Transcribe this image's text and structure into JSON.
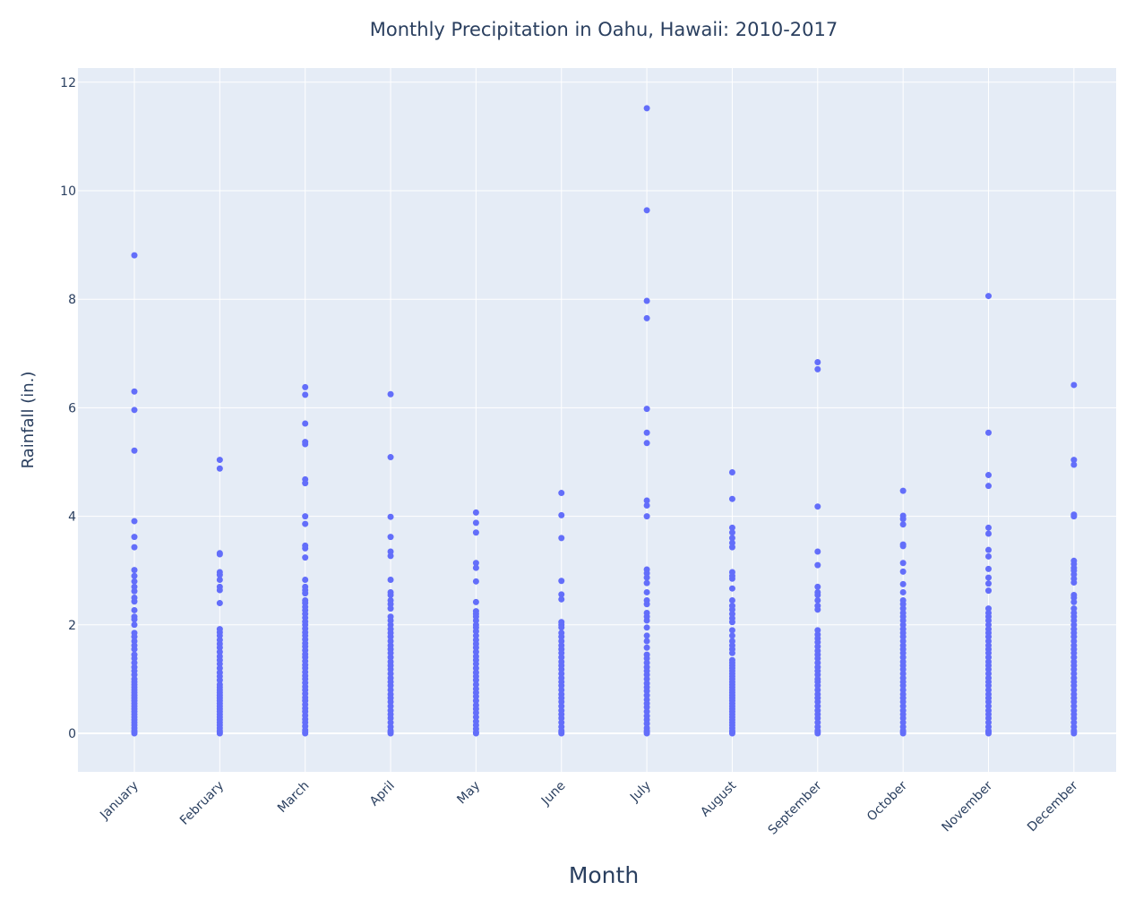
{
  "chart_data": {
    "type": "scatter",
    "title": "Monthly Precipitation in Oahu, Hawaii: 2010-2017",
    "xlabel": "Month",
    "ylabel": "Rainfall (in.)",
    "categories": [
      "January",
      "February",
      "March",
      "April",
      "May",
      "June",
      "July",
      "August",
      "September",
      "October",
      "November",
      "December"
    ],
    "ylim": [
      -0.7,
      12.2
    ],
    "yticks": [
      0,
      2,
      4,
      6,
      8,
      10,
      12
    ],
    "grid": true,
    "legend": "none",
    "colors": {
      "marker": "#636efa",
      "plot_bg": "#e5ecf6",
      "grid": "#ffffff",
      "text": "#2a3f5f"
    },
    "series": [
      {
        "points": {
          "January": [
            8.81,
            6.3,
            5.96,
            5.21,
            3.91,
            3.62,
            3.43,
            3.01,
            2.9,
            2.8,
            2.7,
            2.62,
            2.5,
            2.43,
            2.27,
            2.15,
            2.1,
            2.0,
            1.85,
            1.78,
            1.7,
            1.62,
            1.55,
            1.45,
            1.38,
            1.3,
            1.22,
            1.15,
            1.08,
            1.0,
            0.95,
            0.9,
            0.85,
            0.8,
            0.75,
            0.7,
            0.65,
            0.6,
            0.55,
            0.5,
            0.45,
            0.4,
            0.35,
            0.3,
            0.25,
            0.2,
            0.15,
            0.1,
            0.05,
            0.02,
            0.0
          ],
          "February": [
            5.04,
            4.88,
            3.32,
            3.3,
            2.97,
            2.92,
            2.83,
            2.7,
            2.64,
            2.4,
            1.92,
            1.86,
            1.8,
            1.72,
            1.65,
            1.58,
            1.5,
            1.42,
            1.35,
            1.28,
            1.2,
            1.12,
            1.05,
            0.98,
            0.9,
            0.85,
            0.8,
            0.75,
            0.7,
            0.65,
            0.6,
            0.55,
            0.5,
            0.45,
            0.4,
            0.35,
            0.3,
            0.25,
            0.2,
            0.15,
            0.1,
            0.05,
            0.02,
            0.0
          ],
          "March": [
            6.38,
            6.24,
            5.71,
            5.37,
            5.33,
            4.68,
            4.61,
            4.0,
            3.86,
            3.46,
            3.41,
            3.24,
            2.83,
            2.7,
            2.64,
            2.58,
            2.45,
            2.4,
            2.33,
            2.27,
            2.2,
            2.13,
            2.06,
            2.0,
            1.93,
            1.86,
            1.8,
            1.73,
            1.66,
            1.6,
            1.53,
            1.46,
            1.4,
            1.33,
            1.26,
            1.2,
            1.13,
            1.06,
            1.0,
            0.93,
            0.86,
            0.8,
            0.73,
            0.66,
            0.6,
            0.53,
            0.46,
            0.4,
            0.33,
            0.26,
            0.2,
            0.13,
            0.06,
            0.02,
            0.0
          ],
          "April": [
            6.25,
            5.09,
            3.99,
            3.62,
            3.35,
            3.27,
            2.83,
            2.6,
            2.55,
            2.45,
            2.38,
            2.3,
            2.15,
            2.08,
            2.0,
            1.92,
            1.85,
            1.78,
            1.7,
            1.62,
            1.55,
            1.48,
            1.4,
            1.32,
            1.25,
            1.18,
            1.1,
            1.02,
            0.95,
            0.88,
            0.8,
            0.72,
            0.65,
            0.58,
            0.5,
            0.42,
            0.35,
            0.28,
            0.2,
            0.12,
            0.05,
            0.02,
            0.0
          ],
          "May": [
            4.07,
            3.88,
            3.7,
            3.14,
            3.05,
            2.8,
            2.42,
            2.25,
            2.2,
            2.15,
            2.08,
            2.0,
            1.95,
            1.88,
            1.8,
            1.72,
            1.65,
            1.58,
            1.5,
            1.42,
            1.35,
            1.28,
            1.2,
            1.12,
            1.05,
            0.98,
            0.9,
            0.82,
            0.75,
            0.68,
            0.6,
            0.52,
            0.45,
            0.38,
            0.3,
            0.22,
            0.15,
            0.08,
            0.02,
            0.0
          ],
          "June": [
            4.43,
            4.02,
            3.6,
            2.81,
            2.56,
            2.47,
            2.05,
            2.0,
            1.95,
            1.85,
            1.78,
            1.7,
            1.62,
            1.55,
            1.48,
            1.4,
            1.32,
            1.25,
            1.18,
            1.1,
            1.02,
            0.95,
            0.88,
            0.8,
            0.72,
            0.65,
            0.58,
            0.5,
            0.42,
            0.35,
            0.28,
            0.2,
            0.12,
            0.05,
            0.02,
            0.0
          ],
          "July": [
            11.52,
            9.64,
            7.97,
            7.65,
            5.98,
            5.54,
            5.35,
            4.29,
            4.2,
            4.0,
            3.02,
            2.95,
            2.87,
            2.77,
            2.6,
            2.45,
            2.38,
            2.22,
            2.15,
            2.08,
            1.95,
            1.8,
            1.7,
            1.58,
            1.45,
            1.38,
            1.3,
            1.22,
            1.15,
            1.08,
            1.0,
            0.92,
            0.85,
            0.78,
            0.7,
            0.62,
            0.55,
            0.48,
            0.4,
            0.32,
            0.25,
            0.18,
            0.1,
            0.05,
            0.02,
            0.0
          ],
          "August": [
            4.81,
            4.32,
            3.79,
            3.7,
            3.6,
            3.51,
            3.43,
            2.97,
            2.9,
            2.85,
            2.67,
            2.45,
            2.35,
            2.28,
            2.2,
            2.12,
            2.05,
            1.9,
            1.8,
            1.7,
            1.62,
            1.55,
            1.48,
            1.35,
            1.3,
            1.25,
            1.2,
            1.15,
            1.1,
            1.05,
            1.0,
            0.95,
            0.9,
            0.85,
            0.8,
            0.75,
            0.7,
            0.65,
            0.6,
            0.55,
            0.5,
            0.45,
            0.4,
            0.35,
            0.3,
            0.25,
            0.2,
            0.15,
            0.1,
            0.05,
            0.02,
            0.0
          ],
          "September": [
            6.84,
            6.71,
            4.18,
            3.35,
            3.1,
            2.7,
            2.6,
            2.55,
            2.45,
            2.35,
            2.28,
            1.9,
            1.82,
            1.75,
            1.68,
            1.6,
            1.52,
            1.45,
            1.38,
            1.3,
            1.22,
            1.15,
            1.08,
            1.0,
            0.95,
            0.88,
            0.8,
            0.72,
            0.65,
            0.58,
            0.5,
            0.42,
            0.35,
            0.28,
            0.2,
            0.12,
            0.05,
            0.02,
            0.0
          ],
          "October": [
            4.47,
            4.01,
            3.95,
            3.85,
            3.48,
            3.45,
            3.14,
            2.98,
            2.75,
            2.6,
            2.45,
            2.38,
            2.3,
            2.22,
            2.15,
            2.08,
            2.0,
            1.92,
            1.85,
            1.78,
            1.7,
            1.62,
            1.55,
            1.48,
            1.4,
            1.32,
            1.25,
            1.18,
            1.1,
            1.02,
            0.95,
            0.88,
            0.8,
            0.72,
            0.65,
            0.58,
            0.5,
            0.42,
            0.35,
            0.28,
            0.2,
            0.12,
            0.05,
            0.02,
            0.0
          ],
          "November": [
            8.06,
            5.54,
            4.76,
            4.56,
            3.79,
            3.68,
            3.38,
            3.26,
            3.03,
            2.87,
            2.76,
            2.63,
            2.3,
            2.22,
            2.15,
            2.08,
            2.0,
            1.92,
            1.85,
            1.78,
            1.7,
            1.62,
            1.55,
            1.48,
            1.4,
            1.32,
            1.25,
            1.18,
            1.1,
            1.02,
            0.95,
            0.88,
            0.8,
            0.72,
            0.65,
            0.58,
            0.5,
            0.42,
            0.35,
            0.28,
            0.2,
            0.12,
            0.05,
            0.02,
            0.0
          ],
          "December": [
            6.42,
            5.04,
            4.95,
            4.03,
            4.0,
            3.18,
            3.12,
            3.05,
            3.0,
            2.93,
            2.85,
            2.78,
            2.55,
            2.5,
            2.42,
            2.3,
            2.22,
            2.15,
            2.08,
            2.0,
            1.92,
            1.85,
            1.78,
            1.7,
            1.62,
            1.55,
            1.48,
            1.4,
            1.32,
            1.25,
            1.18,
            1.1,
            1.02,
            0.95,
            0.88,
            0.8,
            0.72,
            0.65,
            0.58,
            0.5,
            0.42,
            0.35,
            0.28,
            0.2,
            0.12,
            0.05,
            0.02,
            0.0
          ]
        }
      }
    ]
  }
}
